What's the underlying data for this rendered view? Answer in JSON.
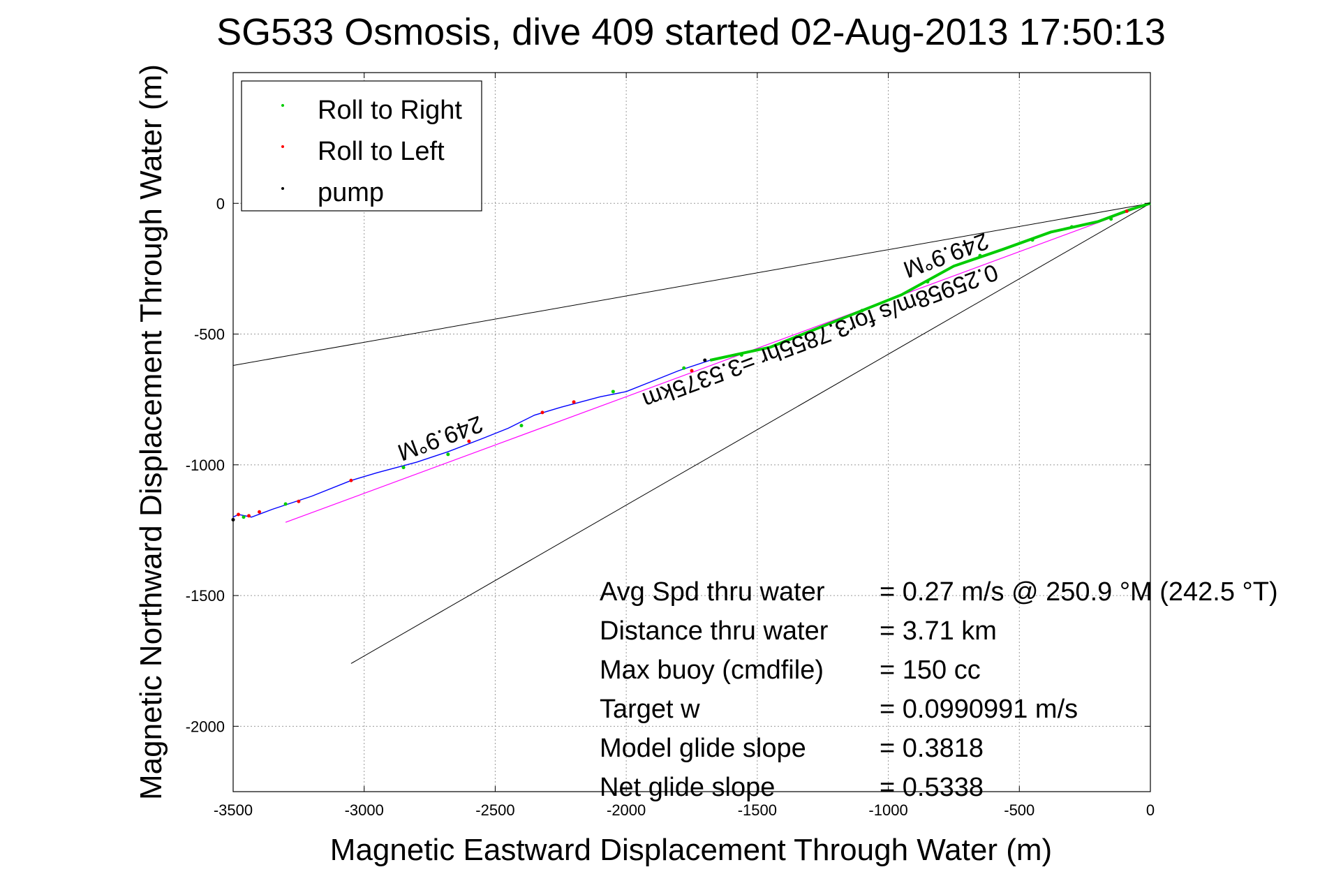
{
  "chart_data": {
    "type": "line",
    "title": "SG533 Osmosis, dive 409 started 02-Aug-2013 17:50:13",
    "xlabel": "Magnetic Eastward Displacement Through Water (m)",
    "ylabel": "Magnetic Northward Displacement Through Water (m)",
    "xlim": [
      -3500,
      0
    ],
    "ylim": [
      -2250,
      500
    ],
    "xticks": [
      "-3500",
      "-3000",
      "-2500",
      "-2000",
      "-1500",
      "-1000",
      "-500",
      "0"
    ],
    "yticks": [
      "-2000",
      "-1500",
      "-1000",
      "-500",
      "0"
    ],
    "grid": true,
    "legend": {
      "placement": "top-left",
      "entries": [
        {
          "label": "Roll to Right",
          "color": "#00cc00"
        },
        {
          "label": "Roll to Left",
          "color": "#ff0000"
        },
        {
          "label": "pump",
          "color": "#000000"
        }
      ]
    },
    "track": {
      "color": "#0000ff",
      "points": [
        [
          0,
          0
        ],
        [
          -80,
          -25
        ],
        [
          -200,
          -70
        ],
        [
          -380,
          -110
        ],
        [
          -560,
          -175
        ],
        [
          -750,
          -240
        ],
        [
          -950,
          -350
        ],
        [
          -1200,
          -450
        ],
        [
          -1450,
          -550
        ],
        [
          -1680,
          -600
        ],
        [
          -1800,
          -640
        ],
        [
          -1900,
          -680
        ],
        [
          -2000,
          -720
        ],
        [
          -2100,
          -740
        ],
        [
          -2250,
          -780
        ],
        [
          -2350,
          -810
        ],
        [
          -2450,
          -860
        ],
        [
          -2550,
          -900
        ],
        [
          -2680,
          -950
        ],
        [
          -2800,
          -990
        ],
        [
          -2950,
          -1030
        ],
        [
          -3050,
          -1060
        ],
        [
          -3200,
          -1120
        ],
        [
          -3350,
          -1170
        ],
        [
          -3430,
          -1200
        ],
        [
          -3480,
          -1190
        ],
        [
          -3500,
          -1200
        ]
      ]
    },
    "roll_right": [
      [
        -150,
        -60
      ],
      [
        -300,
        -90
      ],
      [
        -450,
        -140
      ],
      [
        -650,
        -200
      ],
      [
        -850,
        -300
      ],
      [
        -1100,
        -410
      ],
      [
        -1350,
        -510
      ],
      [
        -1560,
        -580
      ],
      [
        -1780,
        -630
      ],
      [
        -2050,
        -720
      ],
      [
        -2400,
        -850
      ],
      [
        -2680,
        -960
      ],
      [
        -2850,
        -1010
      ],
      [
        -3300,
        -1150
      ],
      [
        -3460,
        -1200
      ]
    ],
    "roll_left": [
      [
        -90,
        -30
      ],
      [
        -1750,
        -640
      ],
      [
        -2200,
        -760
      ],
      [
        -2320,
        -800
      ],
      [
        -2600,
        -910
      ],
      [
        -3050,
        -1060
      ],
      [
        -3250,
        -1140
      ],
      [
        -3400,
        -1180
      ],
      [
        -3480,
        -1190
      ],
      [
        -3440,
        -1195
      ]
    ],
    "pump": [
      [
        -1700,
        -600
      ],
      [
        -3500,
        -1210
      ]
    ],
    "heading_line": {
      "color": "#ff00ff",
      "points": [
        [
          0,
          0
        ],
        [
          -3300,
          -1220
        ]
      ]
    },
    "cone_lines": {
      "color": "#000000",
      "lines": [
        [
          [
            0,
            0
          ],
          [
            -3500,
            -620
          ]
        ],
        [
          [
            0,
            0
          ],
          [
            -3050,
            -1760
          ]
        ]
      ]
    },
    "line_annotations": [
      {
        "text": "249.9°M",
        "x": -790,
        "y": -170
      },
      {
        "text": "0.25958m/s for3.7855hr =3.5375km",
        "x": -1270,
        "y": -480
      },
      {
        "text": "249.9°M",
        "x": -2720,
        "y": -870
      }
    ],
    "stats": [
      {
        "label": "Avg Spd thru water",
        "value": "=  0.27 m/s @ 250.9 °M (242.5 °T)"
      },
      {
        "label": "Distance thru water",
        "value": "=  3.71 km"
      },
      {
        "label": "Max buoy (cmdfile)",
        "value": "= 150 cc"
      },
      {
        "label": "Target w",
        "value": "= 0.0990991 m/s"
      },
      {
        "label": "Model glide slope",
        "value": "= 0.3818"
      },
      {
        "label": "Net glide slope",
        "value": "= 0.5338"
      }
    ]
  }
}
